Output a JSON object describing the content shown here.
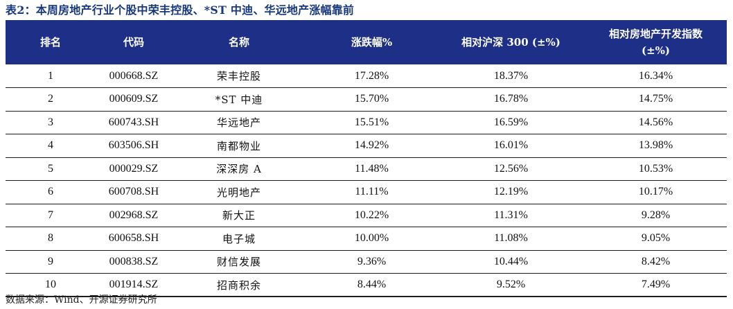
{
  "title": "表2：本周房地产行业个股中荣丰控股、*ST 中迪、华远地产涨幅靠前",
  "table": {
    "headers": {
      "rank": "排名",
      "code": "代码",
      "name": "名称",
      "change": "涨跌幅%",
      "rel_csi300": "相对沪深 300 (±%)",
      "rel_index_line1": "相对房地产开发指数",
      "rel_index_line2": "(±%)"
    },
    "rows": [
      {
        "rank": "1",
        "code": "000668.SZ",
        "name": "荣丰控股",
        "change": "17.28%",
        "rel_csi300": "18.37%",
        "rel_index": "16.34%"
      },
      {
        "rank": "2",
        "code": "000609.SZ",
        "name": "*ST 中迪",
        "change": "15.70%",
        "rel_csi300": "16.78%",
        "rel_index": "14.75%"
      },
      {
        "rank": "3",
        "code": "600743.SH",
        "name": "华远地产",
        "change": "15.51%",
        "rel_csi300": "16.59%",
        "rel_index": "14.56%"
      },
      {
        "rank": "4",
        "code": "603506.SH",
        "name": "南都物业",
        "change": "14.92%",
        "rel_csi300": "16.01%",
        "rel_index": "13.98%"
      },
      {
        "rank": "5",
        "code": "000029.SZ",
        "name": "深深房 A",
        "change": "11.48%",
        "rel_csi300": "12.56%",
        "rel_index": "10.53%"
      },
      {
        "rank": "6",
        "code": "600708.SH",
        "name": "光明地产",
        "change": "11.11%",
        "rel_csi300": "12.19%",
        "rel_index": "10.17%"
      },
      {
        "rank": "7",
        "code": "002968.SZ",
        "name": "新大正",
        "change": "10.22%",
        "rel_csi300": "11.31%",
        "rel_index": "9.28%"
      },
      {
        "rank": "8",
        "code": "600658.SH",
        "name": "电子城",
        "change": "10.00%",
        "rel_csi300": "11.08%",
        "rel_index": "9.05%"
      },
      {
        "rank": "9",
        "code": "000838.SZ",
        "name": "财信发展",
        "change": "9.36%",
        "rel_csi300": "10.44%",
        "rel_index": "8.42%"
      },
      {
        "rank": "10",
        "code": "001914.SZ",
        "name": "招商积余",
        "change": "8.44%",
        "rel_csi300": "9.52%",
        "rel_index": "7.49%"
      }
    ]
  },
  "source": "数据来源：Wind、开源证券研究所",
  "colors": {
    "header_bg": "#1d2f86",
    "title_text": "#17377f"
  }
}
